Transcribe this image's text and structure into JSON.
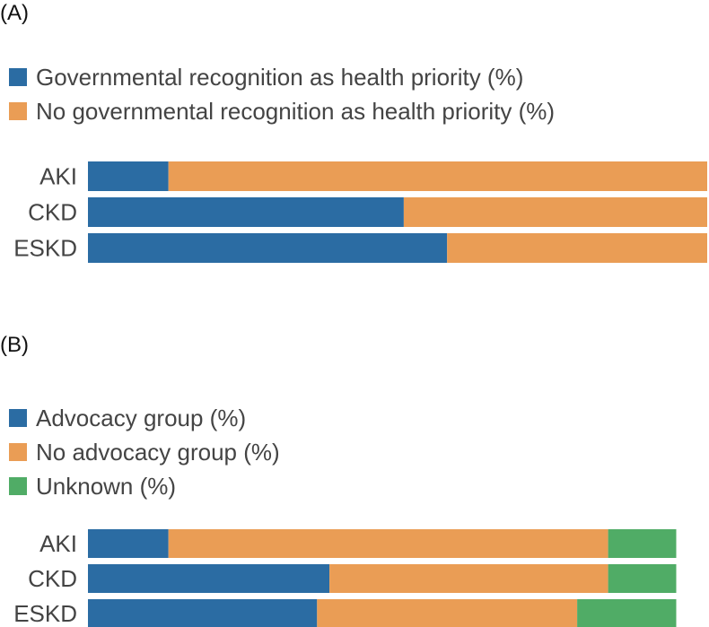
{
  "chart_data": [
    {
      "type": "bar",
      "orientation": "horizontal",
      "stacked": true,
      "panel_label": "(A)",
      "legend_placement": "top-left",
      "categories": [
        "AKI",
        "CKD",
        "ESKD"
      ],
      "series": [
        {
          "name": "Governmental recognition as health priority (%)",
          "color": "#2b6ca3",
          "values": [
            13,
            51,
            58
          ]
        },
        {
          "name": "No governmental recognition as health priority (%)",
          "color": "#ea9d55",
          "values": [
            87,
            49,
            42
          ]
        }
      ],
      "xlim": [
        0,
        100
      ],
      "grid": false
    },
    {
      "type": "bar",
      "orientation": "horizontal",
      "stacked": true,
      "panel_label": "(B)",
      "legend_placement": "top-left",
      "categories": [
        "AKI",
        "CKD",
        "ESKD"
      ],
      "series": [
        {
          "name": "Advocacy group (%)",
          "color": "#2b6ca3",
          "values": [
            13,
            39,
            37
          ]
        },
        {
          "name": "No advocacy group (%)",
          "color": "#ea9d55",
          "values": [
            71,
            45,
            42
          ]
        },
        {
          "name": "Unknown (%)",
          "color": "#50ac66",
          "values": [
            11,
            11,
            16
          ]
        }
      ],
      "xlim": [
        0,
        100
      ],
      "grid": false
    }
  ]
}
